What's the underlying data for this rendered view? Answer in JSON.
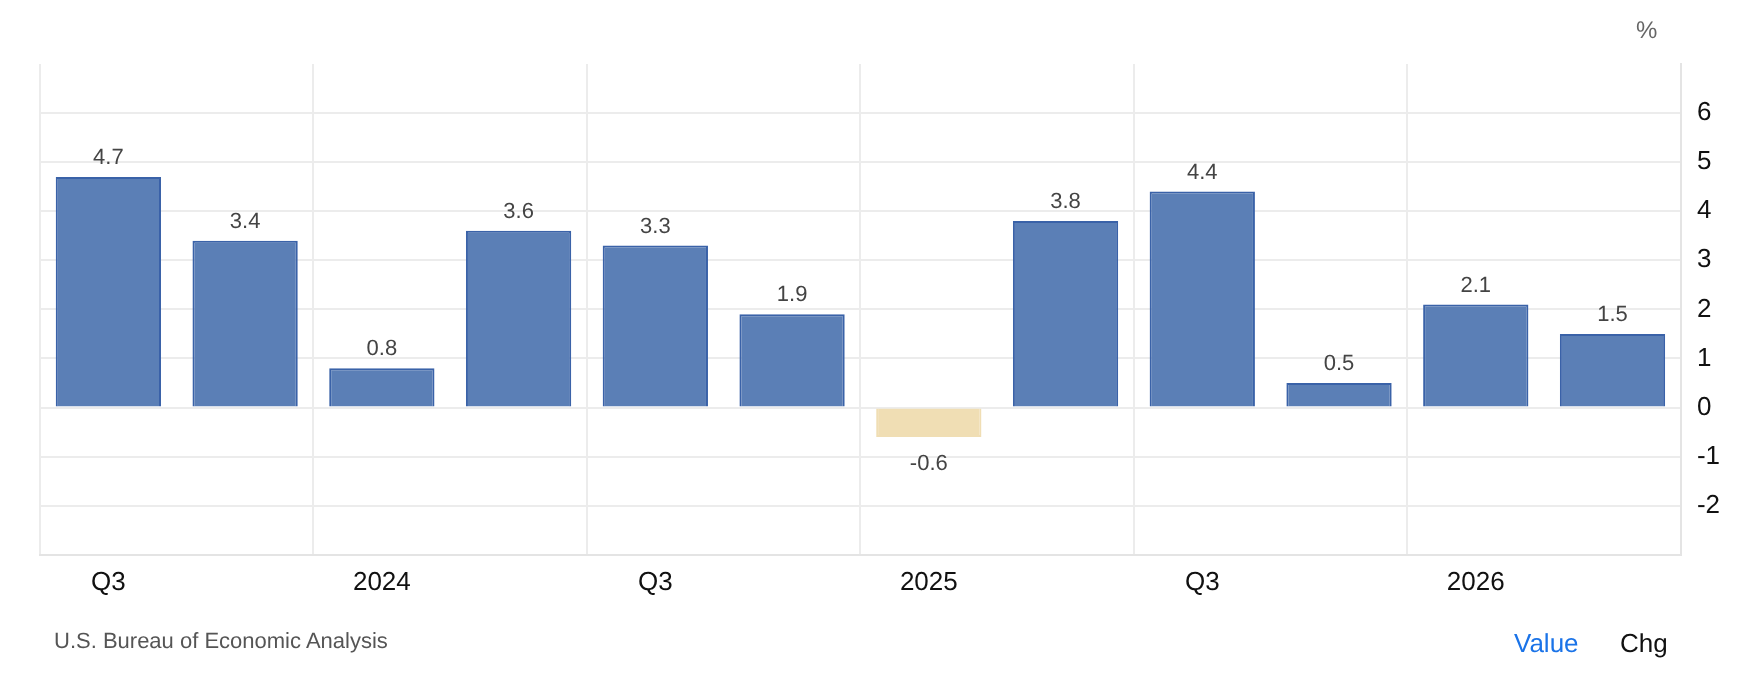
{
  "chart_data": {
    "type": "bar",
    "ylabel": "%",
    "categories": [
      "Q3",
      null,
      "2024",
      null,
      "Q3",
      null,
      "2025",
      null,
      "Q3",
      null,
      "2026",
      null
    ],
    "values": [
      4.7,
      3.4,
      0.8,
      3.6,
      3.3,
      1.9,
      -0.6,
      3.8,
      4.4,
      0.5,
      2.1,
      1.5
    ],
    "colors": [
      "#5b7fb6",
      "#5b7fb6",
      "#5b7fb6",
      "#5b7fb6",
      "#5b7fb6",
      "#5b7fb6",
      "#f0deb4",
      "#5b7fb6",
      "#5b7fb6",
      "#5b7fb6",
      "#5b7fb6",
      "#5b7fb6"
    ],
    "ylim": [
      -3,
      7
    ],
    "yticks": [
      -2,
      -1,
      0,
      1,
      2,
      3,
      4,
      5,
      6
    ],
    "grid": true,
    "data_labels": true,
    "legend": false,
    "annotations": [
      "U.S. Bureau of Economic Analysis",
      "Value",
      "Chg"
    ]
  }
}
